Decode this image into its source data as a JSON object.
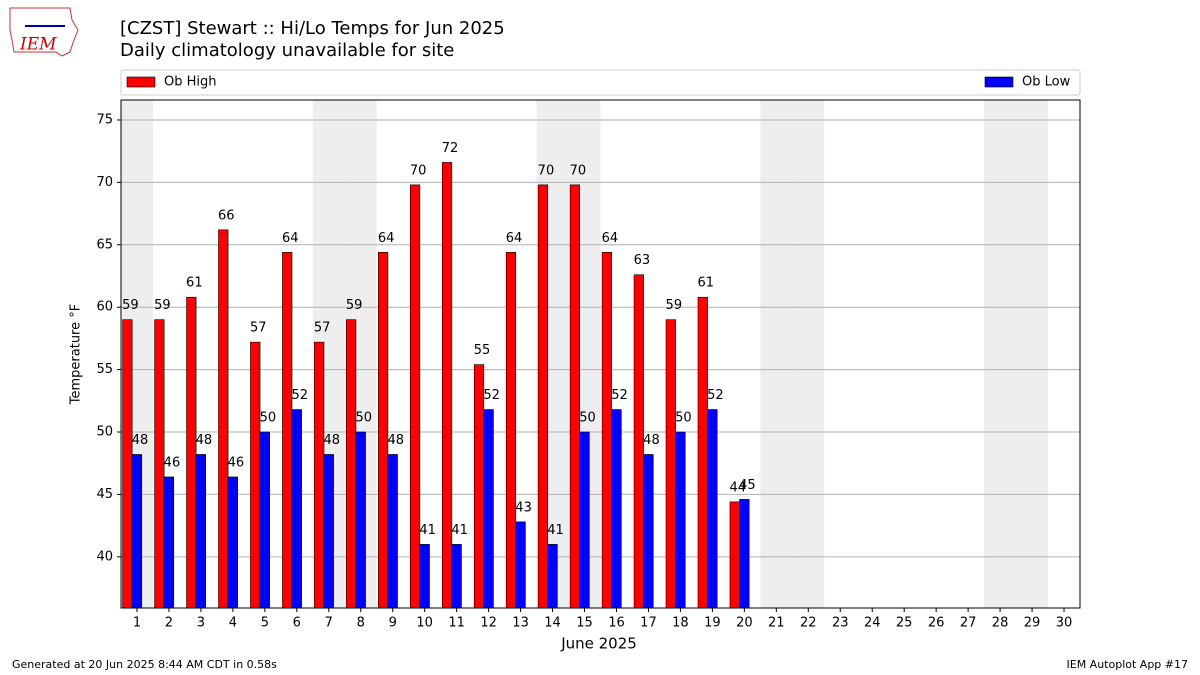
{
  "chart_data": {
    "type": "bar",
    "title": "[CZST] Stewart :: Hi/Lo Temps for Jun 2025",
    "subtitle": "Daily climatology unavailable for site",
    "x_label": "June 2025",
    "y_label": "Temperature °F",
    "logo_text": "IEM",
    "footer_left": "Generated at 20 Jun 2025 8:44 AM CDT in 0.58s",
    "footer_right": "IEM Autoplot App #17",
    "x": [
      1,
      2,
      3,
      4,
      5,
      6,
      7,
      8,
      9,
      10,
      11,
      12,
      13,
      14,
      15,
      16,
      17,
      18,
      19,
      20,
      21,
      22,
      23,
      24,
      25,
      26,
      27,
      28,
      29,
      30
    ],
    "xlim": [
      0.5,
      30.5
    ],
    "xticks": [
      1,
      2,
      3,
      4,
      5,
      6,
      7,
      8,
      9,
      10,
      11,
      12,
      13,
      14,
      15,
      16,
      17,
      18,
      19,
      20,
      21,
      22,
      23,
      24,
      25,
      26,
      27,
      28,
      29,
      30
    ],
    "ylim": [
      35.9,
      76.6
    ],
    "yticks": [
      40,
      45,
      50,
      55,
      60,
      65,
      70,
      75
    ],
    "grid": true,
    "highlight_days": [
      1,
      7,
      8,
      14,
      15,
      21,
      22,
      28,
      29
    ],
    "highlight_color": "#eeeeee",
    "series": [
      {
        "name": "Ob High",
        "color": "#ff0000",
        "values": [
          59.0,
          59.0,
          60.8,
          66.2,
          57.2,
          64.4,
          57.2,
          59.0,
          64.4,
          69.8,
          71.6,
          55.4,
          64.4,
          69.8,
          69.8,
          64.4,
          62.6,
          59.0,
          60.8,
          44.4,
          null,
          null,
          null,
          null,
          null,
          null,
          null,
          null,
          null,
          null
        ],
        "value_labels": [
          "59",
          "59",
          "61",
          "66",
          "57",
          "64",
          "57",
          "59",
          "64",
          "70",
          "72",
          "55",
          "64",
          "70",
          "70",
          "64",
          "63",
          "59",
          "61",
          "44",
          null,
          null,
          null,
          null,
          null,
          null,
          null,
          null,
          null,
          null
        ]
      },
      {
        "name": "Ob Low",
        "color": "#0000ff",
        "values": [
          48.2,
          46.4,
          48.2,
          46.4,
          50.0,
          51.8,
          48.2,
          50.0,
          48.2,
          41.0,
          41.0,
          51.8,
          42.8,
          41.0,
          50.0,
          51.8,
          48.2,
          50.0,
          51.8,
          44.6,
          null,
          null,
          null,
          null,
          null,
          null,
          null,
          null,
          null,
          null
        ],
        "value_labels": [
          "48",
          "46",
          "48",
          "46",
          "50",
          "52",
          "48",
          "50",
          "48",
          "41",
          "41",
          "52",
          "43",
          "41",
          "50",
          "52",
          "48",
          "50",
          "52",
          "45",
          null,
          null,
          null,
          null,
          null,
          null,
          null,
          null,
          null,
          null
        ]
      }
    ]
  }
}
